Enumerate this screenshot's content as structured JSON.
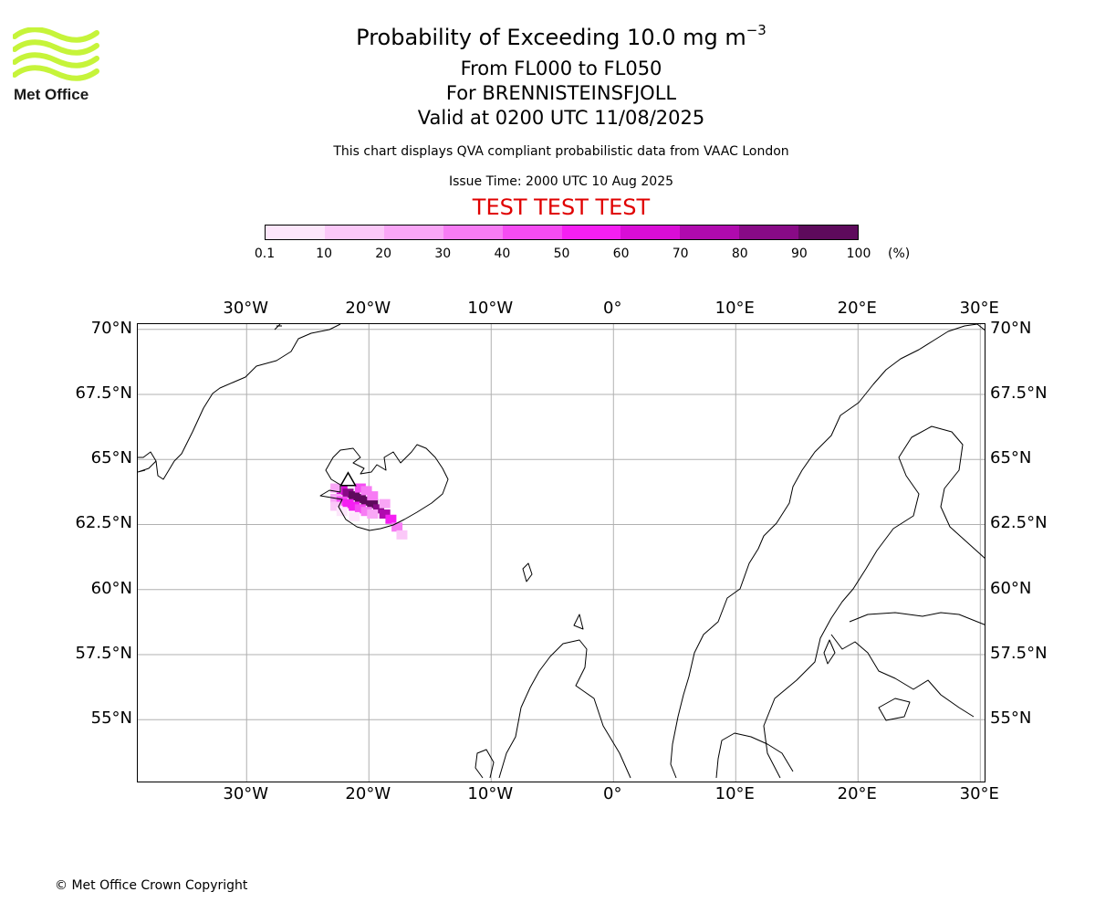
{
  "header": {
    "title_text": "Probability of Exceeding 10.0 mg m",
    "title_exponent": "−3",
    "level_range": "From FL000 to FL050",
    "volcano": "For BRENNISTEINSFJOLL",
    "valid_time": "Valid at 0200 UTC 11/08/2025",
    "subtitle": "This chart displays QVA compliant probabilistic data from VAAC London",
    "issue_time": "Issue Time: 2000 UTC 10 Aug 2025",
    "test_banner": "TEST TEST TEST"
  },
  "logo": {
    "text": "Met Office",
    "wave_color": "#c6f43a"
  },
  "colorbar": {
    "ticks": [
      "0.1",
      "10",
      "20",
      "30",
      "40",
      "50",
      "60",
      "70",
      "80",
      "90",
      "100"
    ],
    "unit": "(%)",
    "colors": [
      "#fde6fb",
      "#fbc8f8",
      "#f9a6f6",
      "#f77cf4",
      "#f54cf2",
      "#f51ff2",
      "#d90dd6",
      "#b00aae",
      "#880a86",
      "#5e0a5c"
    ]
  },
  "map": {
    "lon_labels": [
      "30°W",
      "20°W",
      "10°W",
      "0°",
      "10°E",
      "20°E",
      "30°E"
    ],
    "lat_labels": [
      "70°N",
      "67.5°N",
      "65°N",
      "62.5°N",
      "60°N",
      "57.5°N",
      "55°N"
    ],
    "lon_values": [
      -30,
      -20,
      -10,
      0,
      10,
      20,
      30
    ],
    "lat_values": [
      70,
      67.5,
      65,
      62.5,
      60,
      57.5,
      55
    ],
    "lon_range": [
      -38.9,
      30.5
    ],
    "lat_range": [
      53.3,
      70.2
    ],
    "volcano_marker": {
      "lon": -21.7,
      "lat": 64.0
    },
    "plume_points": [
      {
        "lon": -22.2,
        "lat": 63.8,
        "p": 60
      },
      {
        "lon": -21.7,
        "lat": 63.7,
        "p": 85
      },
      {
        "lon": -21.2,
        "lat": 63.6,
        "p": 95
      },
      {
        "lon": -20.7,
        "lat": 63.5,
        "p": 95
      },
      {
        "lon": -20.2,
        "lat": 63.4,
        "p": 90
      },
      {
        "lon": -19.7,
        "lat": 63.3,
        "p": 90
      },
      {
        "lon": -19.2,
        "lat": 63.1,
        "p": 85
      },
      {
        "lon": -18.7,
        "lat": 62.9,
        "p": 75
      },
      {
        "lon": -18.2,
        "lat": 62.7,
        "p": 55
      },
      {
        "lon": -17.7,
        "lat": 62.4,
        "p": 30
      },
      {
        "lon": -17.3,
        "lat": 62.1,
        "p": 10
      },
      {
        "lon": -22.7,
        "lat": 63.5,
        "p": 25
      },
      {
        "lon": -22.2,
        "lat": 63.4,
        "p": 45
      },
      {
        "lon": -21.7,
        "lat": 63.3,
        "p": 50
      },
      {
        "lon": -21.2,
        "lat": 63.2,
        "p": 55
      },
      {
        "lon": -20.7,
        "lat": 63.1,
        "p": 45
      },
      {
        "lon": -20.2,
        "lat": 63.0,
        "p": 35
      },
      {
        "lon": -19.7,
        "lat": 62.9,
        "p": 25
      },
      {
        "lon": -22.7,
        "lat": 63.2,
        "p": 10
      },
      {
        "lon": -22.2,
        "lat": 63.0,
        "p": 8
      },
      {
        "lon": -21.2,
        "lat": 62.8,
        "p": 5
      },
      {
        "lon": -20.7,
        "lat": 63.9,
        "p": 40
      },
      {
        "lon": -20.2,
        "lat": 63.8,
        "p": 30
      },
      {
        "lon": -19.7,
        "lat": 63.6,
        "p": 35
      },
      {
        "lon": -22.7,
        "lat": 63.9,
        "p": 20
      },
      {
        "lon": -18.7,
        "lat": 63.3,
        "p": 20
      }
    ]
  },
  "footer": {
    "copyright": "© Met Office Crown Copyright"
  }
}
